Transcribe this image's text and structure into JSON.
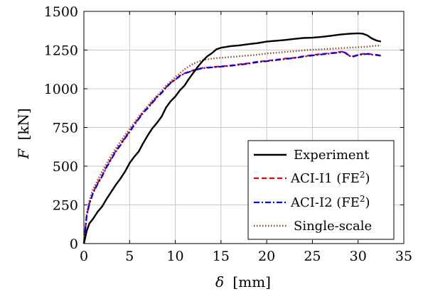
{
  "chart_data": {
    "type": "line",
    "xlabel_symbol": "δ",
    "xlabel_unit": "[mm]",
    "ylabel_symbol": "F",
    "ylabel_unit": "[kN]",
    "xlim": [
      0,
      35
    ],
    "ylim": [
      0,
      1500
    ],
    "x_ticks": [
      0,
      5,
      10,
      15,
      20,
      25,
      30,
      35
    ],
    "y_ticks": [
      0,
      250,
      500,
      750,
      1000,
      1250,
      1500
    ],
    "grid": true,
    "legend_position": "bottom-right",
    "series": [
      {
        "name": "Experiment",
        "color": "#000000",
        "style": "solid",
        "x": [
          0,
          0.3,
          0.6,
          1.0,
          1.5,
          2.0,
          2.5,
          3.0,
          3.5,
          4.0,
          4.5,
          5.0,
          5.5,
          6.0,
          6.5,
          7.0,
          7.5,
          8.0,
          8.5,
          9.0,
          9.5,
          10.0,
          10.5,
          11.0,
          11.5,
          12.0,
          12.5,
          13.0,
          13.5,
          14.0,
          14.5,
          15.0,
          15.5,
          16.0,
          17.0,
          18.0,
          19.0,
          20.0,
          21.0,
          22.0,
          23.0,
          24.0,
          25.0,
          26.0,
          27.0,
          28.0,
          29.0,
          30.0,
          30.5,
          31.0,
          31.5,
          32.0,
          32.5
        ],
        "y": [
          0,
          80,
          130,
          160,
          205,
          240,
          290,
          335,
          380,
          420,
          465,
          520,
          560,
          595,
          650,
          700,
          745,
          780,
          820,
          880,
          920,
          950,
          990,
          1020,
          1065,
          1105,
          1145,
          1180,
          1210,
          1230,
          1255,
          1265,
          1270,
          1275,
          1280,
          1288,
          1295,
          1305,
          1310,
          1315,
          1322,
          1328,
          1330,
          1335,
          1342,
          1350,
          1355,
          1358,
          1356,
          1345,
          1325,
          1312,
          1305
        ]
      },
      {
        "name": "ACI-I1 (FE2)",
        "color": "#ee0000",
        "style": "dashed",
        "x": [
          0,
          0.3,
          0.6,
          1.0,
          1.5,
          2.0,
          2.5,
          3.0,
          3.5,
          4.0,
          4.5,
          5.0,
          5.5,
          6.0,
          6.5,
          7.0,
          7.5,
          8.0,
          8.5,
          9.0,
          9.5,
          10.0,
          10.5,
          11.0,
          11.5,
          12.0,
          12.5,
          13.0,
          14.0,
          15.0,
          16.0,
          17.0,
          18.0,
          19.0,
          20.0,
          21.0,
          22.0,
          23.0,
          24.0,
          25.0,
          26.0,
          27.0,
          28.0,
          28.5,
          29.0,
          29.5,
          30.0,
          30.5,
          31.0,
          31.5,
          32.0,
          32.5
        ],
        "y": [
          0,
          180,
          260,
          330,
          390,
          440,
          500,
          550,
          600,
          640,
          685,
          725,
          770,
          810,
          850,
          880,
          915,
          950,
          975,
          1010,
          1040,
          1060,
          1085,
          1100,
          1110,
          1120,
          1128,
          1135,
          1140,
          1145,
          1150,
          1158,
          1165,
          1175,
          1180,
          1188,
          1195,
          1200,
          1210,
          1218,
          1225,
          1230,
          1238,
          1240,
          1215,
          1210,
          1220,
          1225,
          1228,
          1222,
          1220,
          1215
        ]
      },
      {
        "name": "ACI-I2 (FE2)",
        "color": "#0000ee",
        "style": "dashdot",
        "x": [
          0,
          0.3,
          0.6,
          1.0,
          1.5,
          2.0,
          2.5,
          3.0,
          3.5,
          4.0,
          4.5,
          5.0,
          5.5,
          6.0,
          6.5,
          7.0,
          7.5,
          8.0,
          8.5,
          9.0,
          9.5,
          10.0,
          10.5,
          11.0,
          11.5,
          12.0,
          12.5,
          13.0,
          14.0,
          15.0,
          16.0,
          17.0,
          18.0,
          19.0,
          20.0,
          21.0,
          22.0,
          23.0,
          24.0,
          25.0,
          26.0,
          27.0,
          28.0,
          28.5,
          29.0,
          29.5,
          30.0,
          30.5,
          31.0,
          31.5,
          32.0,
          32.5
        ],
        "y": [
          0,
          175,
          255,
          325,
          385,
          435,
          495,
          545,
          595,
          635,
          680,
          720,
          765,
          805,
          845,
          875,
          910,
          945,
          972,
          1008,
          1038,
          1058,
          1082,
          1098,
          1108,
          1118,
          1126,
          1133,
          1138,
          1143,
          1148,
          1155,
          1162,
          1172,
          1178,
          1185,
          1192,
          1198,
          1207,
          1215,
          1222,
          1228,
          1235,
          1236,
          1212,
          1208,
          1218,
          1222,
          1225,
          1220,
          1218,
          1213
        ]
      },
      {
        "name": "Single-scale",
        "color": "#8b4a2b",
        "style": "dotted",
        "x": [
          0,
          0.3,
          0.6,
          1.0,
          1.5,
          2.0,
          2.5,
          3.0,
          3.5,
          4.0,
          4.5,
          5.0,
          5.5,
          6.0,
          6.5,
          7.0,
          7.5,
          8.0,
          8.5,
          9.0,
          9.5,
          10.0,
          10.5,
          11.0,
          11.5,
          12.0,
          12.5,
          13.0,
          14.0,
          15.0,
          16.0,
          17.0,
          18.0,
          19.0,
          20.0,
          21.0,
          22.0,
          23.0,
          24.0,
          25.0,
          26.0,
          27.0,
          28.0,
          29.0,
          30.0,
          31.0,
          32.0,
          32.5
        ],
        "y": [
          0,
          190,
          280,
          350,
          410,
          465,
          520,
          570,
          615,
          660,
          700,
          740,
          780,
          820,
          855,
          890,
          925,
          955,
          985,
          1020,
          1048,
          1075,
          1100,
          1125,
          1145,
          1162,
          1175,
          1185,
          1195,
          1200,
          1205,
          1210,
          1215,
          1220,
          1228,
          1232,
          1238,
          1242,
          1248,
          1252,
          1255,
          1258,
          1262,
          1265,
          1268,
          1272,
          1278,
          1280
        ]
      }
    ]
  }
}
